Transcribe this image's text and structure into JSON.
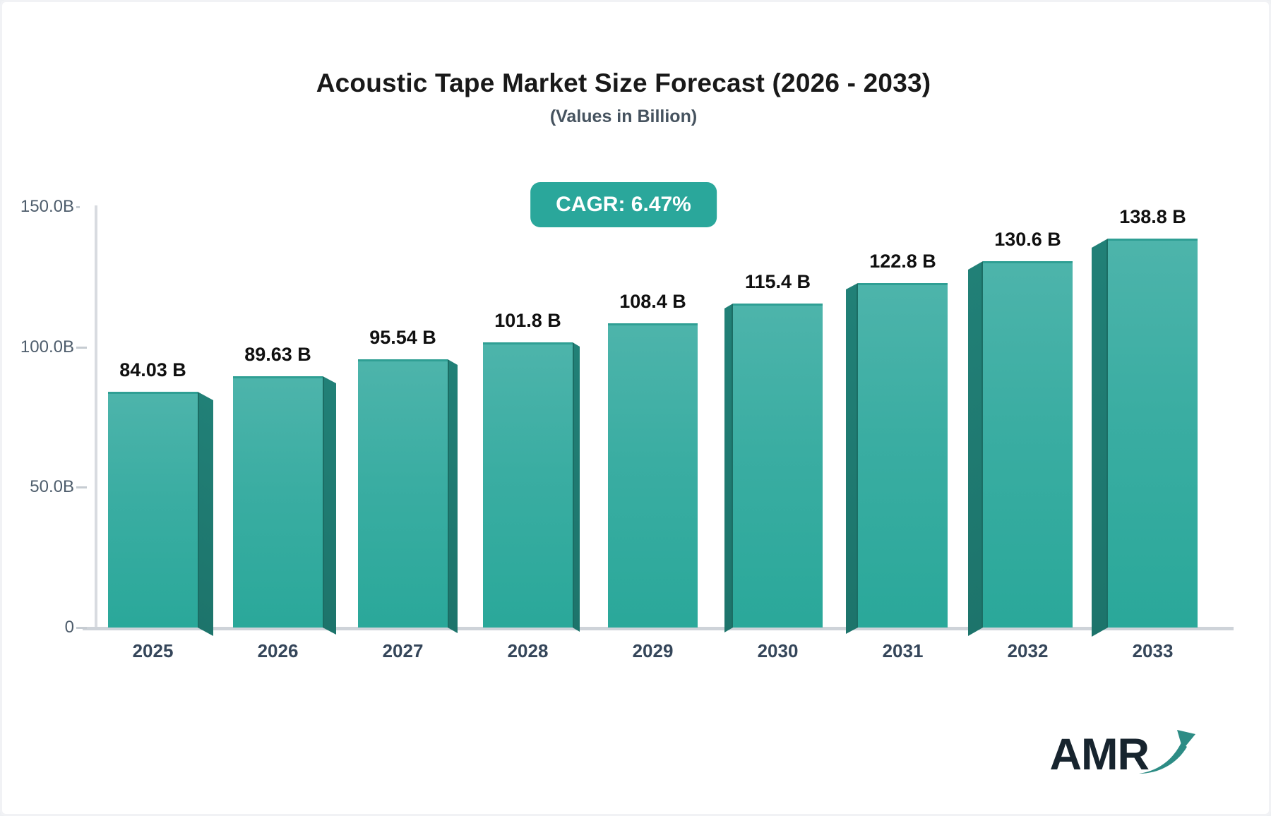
{
  "title": "Acoustic Tape Market Size Forecast (2026 - 2033)",
  "subtitle": "(Values in Billion)",
  "cagr_badge": "CAGR: 6.47%",
  "logo": {
    "text": "AMR"
  },
  "colors": {
    "accent_teal": "#2aa79b",
    "bar_face_top": "#4db4ab",
    "bar_face_bottom": "#2aa89a",
    "bar_side": "#1f7c71",
    "axis_line": "#d8dbe0",
    "title_text": "#191919",
    "subtitle_text": "#46535f",
    "axis_label_text": "#4e5d6c",
    "year_label_text": "#35465a",
    "logo_text": "#17242e"
  },
  "chart_data": {
    "type": "bar",
    "title": "Acoustic Tape Market Size Forecast (2026 - 2033)",
    "subtitle": "(Values in Billion)",
    "annotation": "CAGR: 6.47%",
    "categories": [
      "2025",
      "2026",
      "2027",
      "2028",
      "2029",
      "2030",
      "2031",
      "2032",
      "2033"
    ],
    "values": [
      84.03,
      89.63,
      95.54,
      101.8,
      108.4,
      115.4,
      122.8,
      130.6,
      138.8
    ],
    "bar_labels": [
      "84.03 B",
      "89.63 B",
      "95.54 B",
      "101.8 B",
      "108.4 B",
      "115.4 B",
      "122.8 B",
      "130.6 B",
      "138.8 B"
    ],
    "xlabel": "",
    "ylabel": "",
    "ylim": [
      0,
      150
    ],
    "yticks": [
      {
        "value": 0,
        "label": "0"
      },
      {
        "value": 50,
        "label": "50.0B"
      },
      {
        "value": 100,
        "label": "100.0B"
      },
      {
        "value": 150,
        "label": "150.0B"
      }
    ],
    "grid": false,
    "legend": null,
    "style": "3d-perspective-bars, teal gradient, center vanishing point"
  }
}
